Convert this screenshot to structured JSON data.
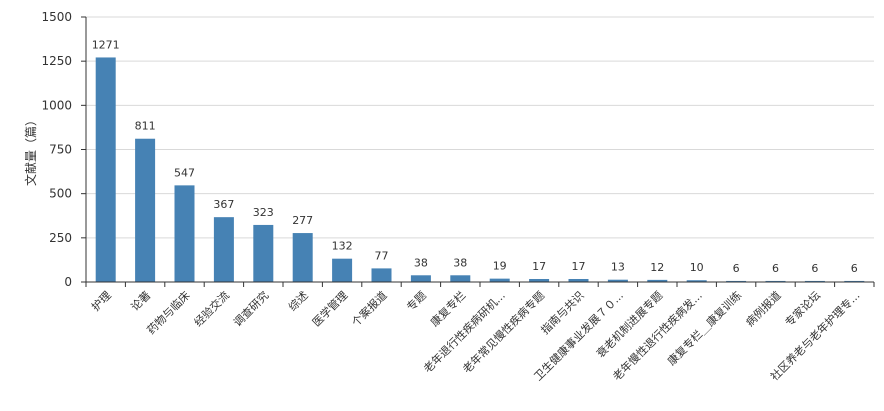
{
  "chart_data": {
    "type": "bar",
    "ylabel": "文献量（篇）",
    "xlabel": "",
    "title": "",
    "ylim": [
      0,
      1500
    ],
    "yticks": [
      0,
      250,
      500,
      750,
      1000,
      1250,
      1500
    ],
    "grid": true,
    "legend": "none",
    "categories": [
      "护理",
      "论著",
      "药物与临床",
      "经验交流",
      "调查研究",
      "综述",
      "医学管理",
      "个案报道",
      "专题",
      "康复专栏",
      "老年退行性疾病研机...",
      "老年常见慢性疾病专题",
      "指南与共识",
      "卫生健康事业发展７０...",
      "衰老机制进展专题",
      "老年慢性退行性疾病发...",
      "康复专栏＿康复训练",
      "病例报道",
      "专家论坛",
      "社区养老与老年护理专..."
    ],
    "values": [
      1271,
      811,
      547,
      367,
      323,
      277,
      132,
      77,
      38,
      38,
      19,
      17,
      17,
      13,
      12,
      10,
      6,
      6,
      6,
      6
    ],
    "colors": {
      "bar": "#4682b4",
      "grid": "#d9d9d9",
      "axis": "#333333",
      "text": "#333333"
    }
  }
}
